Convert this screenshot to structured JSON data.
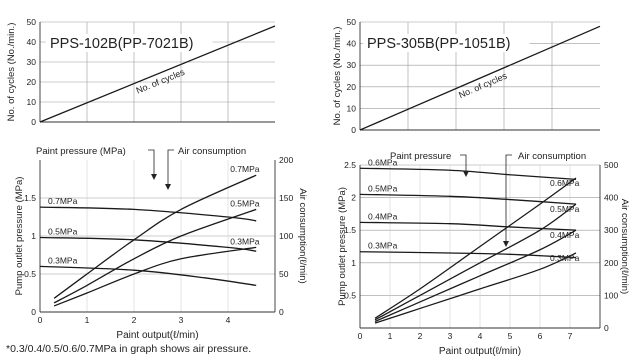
{
  "footnote": "*0.3/0.4/0.5/0.6/0.7MPa in graph shows air pressure.",
  "chart_data": [
    {
      "type": "line",
      "title": "PPS-102B(PP-7021B)",
      "ylabel": "No. of cycles (No./min.)",
      "ylim": [
        0,
        50
      ],
      "yticks": [
        0,
        10,
        20,
        30,
        40,
        50
      ],
      "xlim": [
        0,
        5
      ],
      "series": [
        {
          "name": "No. of cycles",
          "x": [
            0,
            5
          ],
          "y": [
            0,
            48
          ]
        }
      ]
    },
    {
      "type": "line",
      "title": "",
      "xlabel": "Paint output(ℓ/min)",
      "ylabel": "Pump outlet pressure (MPa)",
      "y2label": "Air consumption(ℓ/min)",
      "xlim": [
        0,
        5
      ],
      "xticks": [
        0,
        1,
        2,
        3,
        4
      ],
      "ylim": [
        0,
        2.0
      ],
      "yticks": [
        0,
        0.5,
        1.0,
        1.5
      ],
      "y2lim": [
        0,
        200
      ],
      "y2ticks": [
        0,
        50,
        100,
        150,
        200
      ],
      "annotations": [
        "Paint pressure (MPa)",
        "Air consumption"
      ],
      "series": [
        {
          "name": "0.7MPa",
          "kind": "paint",
          "x": [
            0,
            2,
            4,
            4.6
          ],
          "y": [
            1.38,
            1.35,
            1.25,
            1.2
          ]
        },
        {
          "name": "0.5MPa",
          "kind": "paint",
          "x": [
            0,
            2,
            4,
            4.6
          ],
          "y": [
            0.98,
            0.95,
            0.85,
            0.8
          ]
        },
        {
          "name": "0.3MPa",
          "kind": "paint",
          "x": [
            0,
            2,
            3.5,
            4.6
          ],
          "y": [
            0.6,
            0.55,
            0.45,
            0.35
          ]
        },
        {
          "name": "0.7MPa",
          "kind": "air",
          "axis": "y2",
          "x": [
            0.3,
            1,
            2,
            3,
            4.6
          ],
          "y": [
            18,
            50,
            95,
            135,
            180
          ]
        },
        {
          "name": "0.5MPa",
          "kind": "air",
          "axis": "y2",
          "x": [
            0.3,
            1,
            2,
            3,
            4.6
          ],
          "y": [
            12,
            35,
            70,
            100,
            135
          ]
        },
        {
          "name": "0.3MPa",
          "kind": "air",
          "axis": "y2",
          "x": [
            0.3,
            1,
            2,
            3,
            4.6
          ],
          "y": [
            8,
            25,
            50,
            70,
            85
          ]
        }
      ]
    },
    {
      "type": "line",
      "title": "PPS-305B(PP-1051B)",
      "ylabel": "No. of cycles (No./min.)",
      "ylim": [
        0,
        50
      ],
      "yticks": [
        0,
        10,
        20,
        30,
        40,
        50
      ],
      "xlim": [
        0,
        8
      ],
      "series": [
        {
          "name": "No. of cycles",
          "x": [
            0,
            8
          ],
          "y": [
            0,
            48
          ]
        }
      ]
    },
    {
      "type": "line",
      "title": "",
      "xlabel": "Paint output(ℓ/min)",
      "ylabel": "Pump outlet pressure (MPa)",
      "y2label": "Air consumption(ℓ/min)",
      "xlim": [
        0,
        8
      ],
      "xticks": [
        0,
        1,
        2,
        3,
        4,
        5,
        6,
        7
      ],
      "ylim": [
        0,
        2.5
      ],
      "yticks": [
        0.5,
        1.0,
        1.5,
        2.0,
        2.5
      ],
      "y2lim": [
        0,
        500
      ],
      "y2ticks": [
        0,
        100,
        200,
        300,
        400,
        500
      ],
      "annotations": [
        "Paint pressure",
        "Air consumption"
      ],
      "series": [
        {
          "name": "0.6MPa",
          "kind": "paint",
          "x": [
            0,
            3,
            5,
            7.2
          ],
          "y": [
            2.45,
            2.42,
            2.35,
            2.28
          ]
        },
        {
          "name": "0.5MPa",
          "kind": "paint",
          "x": [
            0,
            3,
            5,
            7.2
          ],
          "y": [
            2.05,
            2.02,
            1.97,
            1.9
          ]
        },
        {
          "name": "0.4MPa",
          "kind": "paint",
          "x": [
            0,
            3,
            5,
            7.2
          ],
          "y": [
            1.62,
            1.6,
            1.55,
            1.5
          ]
        },
        {
          "name": "0.3MPa",
          "kind": "paint",
          "x": [
            0,
            3,
            5,
            7.2
          ],
          "y": [
            1.17,
            1.15,
            1.13,
            1.08
          ]
        },
        {
          "name": "0.6MPa",
          "kind": "air",
          "axis": "y2",
          "x": [
            0.5,
            2,
            4,
            6,
            7.2
          ],
          "y": [
            30,
            120,
            250,
            380,
            460
          ]
        },
        {
          "name": "0.5MPa",
          "kind": "air",
          "axis": "y2",
          "x": [
            0.5,
            2,
            4,
            6,
            7.2
          ],
          "y": [
            25,
            100,
            200,
            300,
            380
          ]
        },
        {
          "name": "0.4MPa",
          "kind": "air",
          "axis": "y2",
          "x": [
            0.5,
            2,
            4,
            6,
            7.2
          ],
          "y": [
            20,
            80,
            160,
            240,
            300
          ]
        },
        {
          "name": "0.3MPa",
          "kind": "air",
          "axis": "y2",
          "x": [
            0.5,
            2,
            4,
            6,
            7.2
          ],
          "y": [
            15,
            60,
            120,
            180,
            230
          ]
        }
      ]
    }
  ]
}
